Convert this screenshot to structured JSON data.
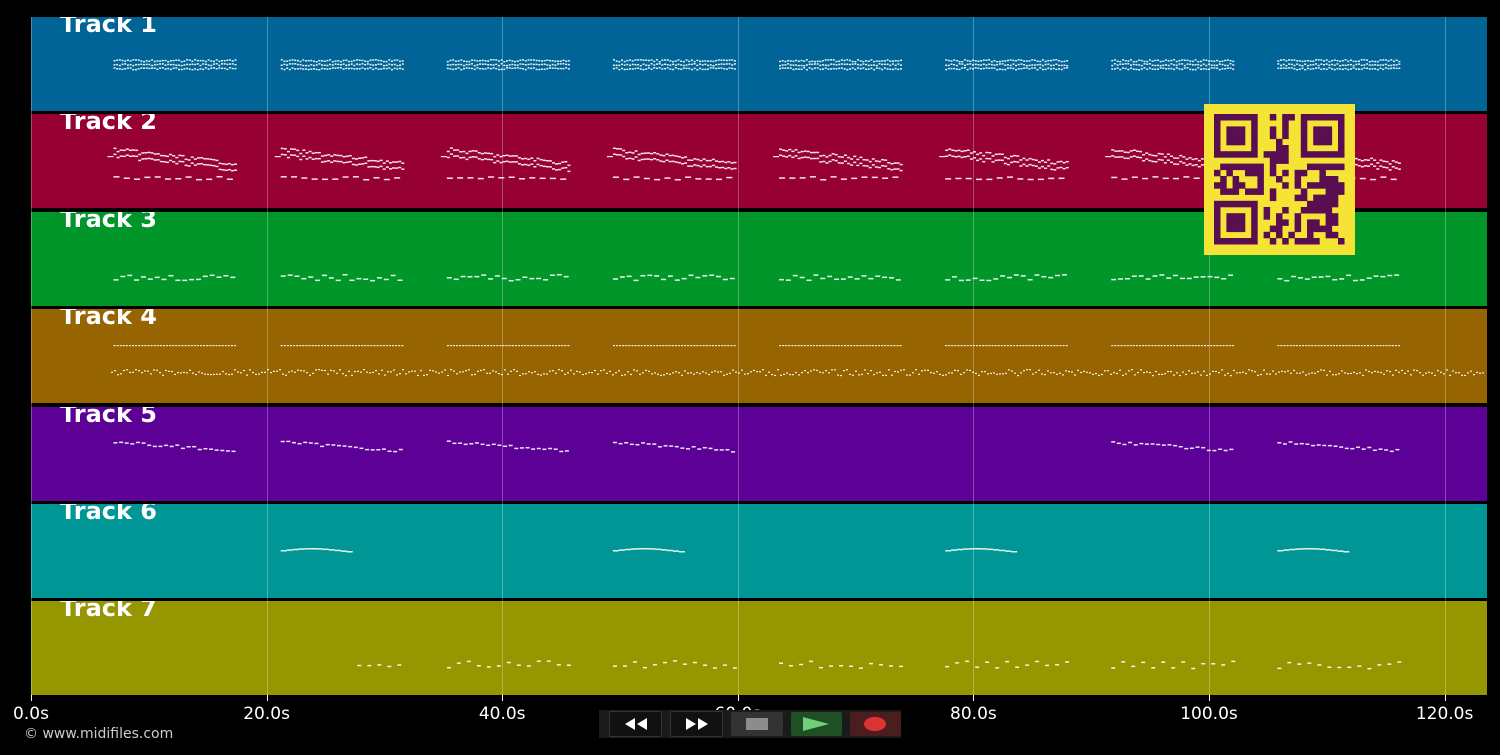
{
  "tracks": [
    {
      "label": "Track 1",
      "color": "#006496"
    },
    {
      "label": "Track 2",
      "color": "#960032"
    },
    {
      "label": "Track 3",
      "color": "#00962a"
    },
    {
      "label": "Track 4",
      "color": "#966400"
    },
    {
      "label": "Track 5",
      "color": "#5c0096"
    },
    {
      "label": "Track 6",
      "color": "#009696"
    },
    {
      "label": "Track 7",
      "color": "#969600"
    }
  ],
  "timeline": {
    "ticks": [
      "0.0s",
      "20.0s",
      "40.0s",
      "60.0s",
      "80.0s",
      "100.0s",
      "120.0s"
    ],
    "tick_seconds": [
      0,
      20,
      40,
      60,
      80,
      100,
      120
    ]
  },
  "copyright": "© www.midifiles.com",
  "transport": {
    "buttons": [
      {
        "name": "rewind-button",
        "icon": "rewind-icon"
      },
      {
        "name": "fast-forward-button",
        "icon": "fast-forward-icon"
      },
      {
        "name": "stop-button",
        "icon": "stop-icon"
      },
      {
        "name": "play-button",
        "icon": "play-icon"
      },
      {
        "name": "record-button",
        "icon": "record-icon"
      }
    ]
  },
  "overlay": {
    "icon": "qr-code-icon"
  }
}
